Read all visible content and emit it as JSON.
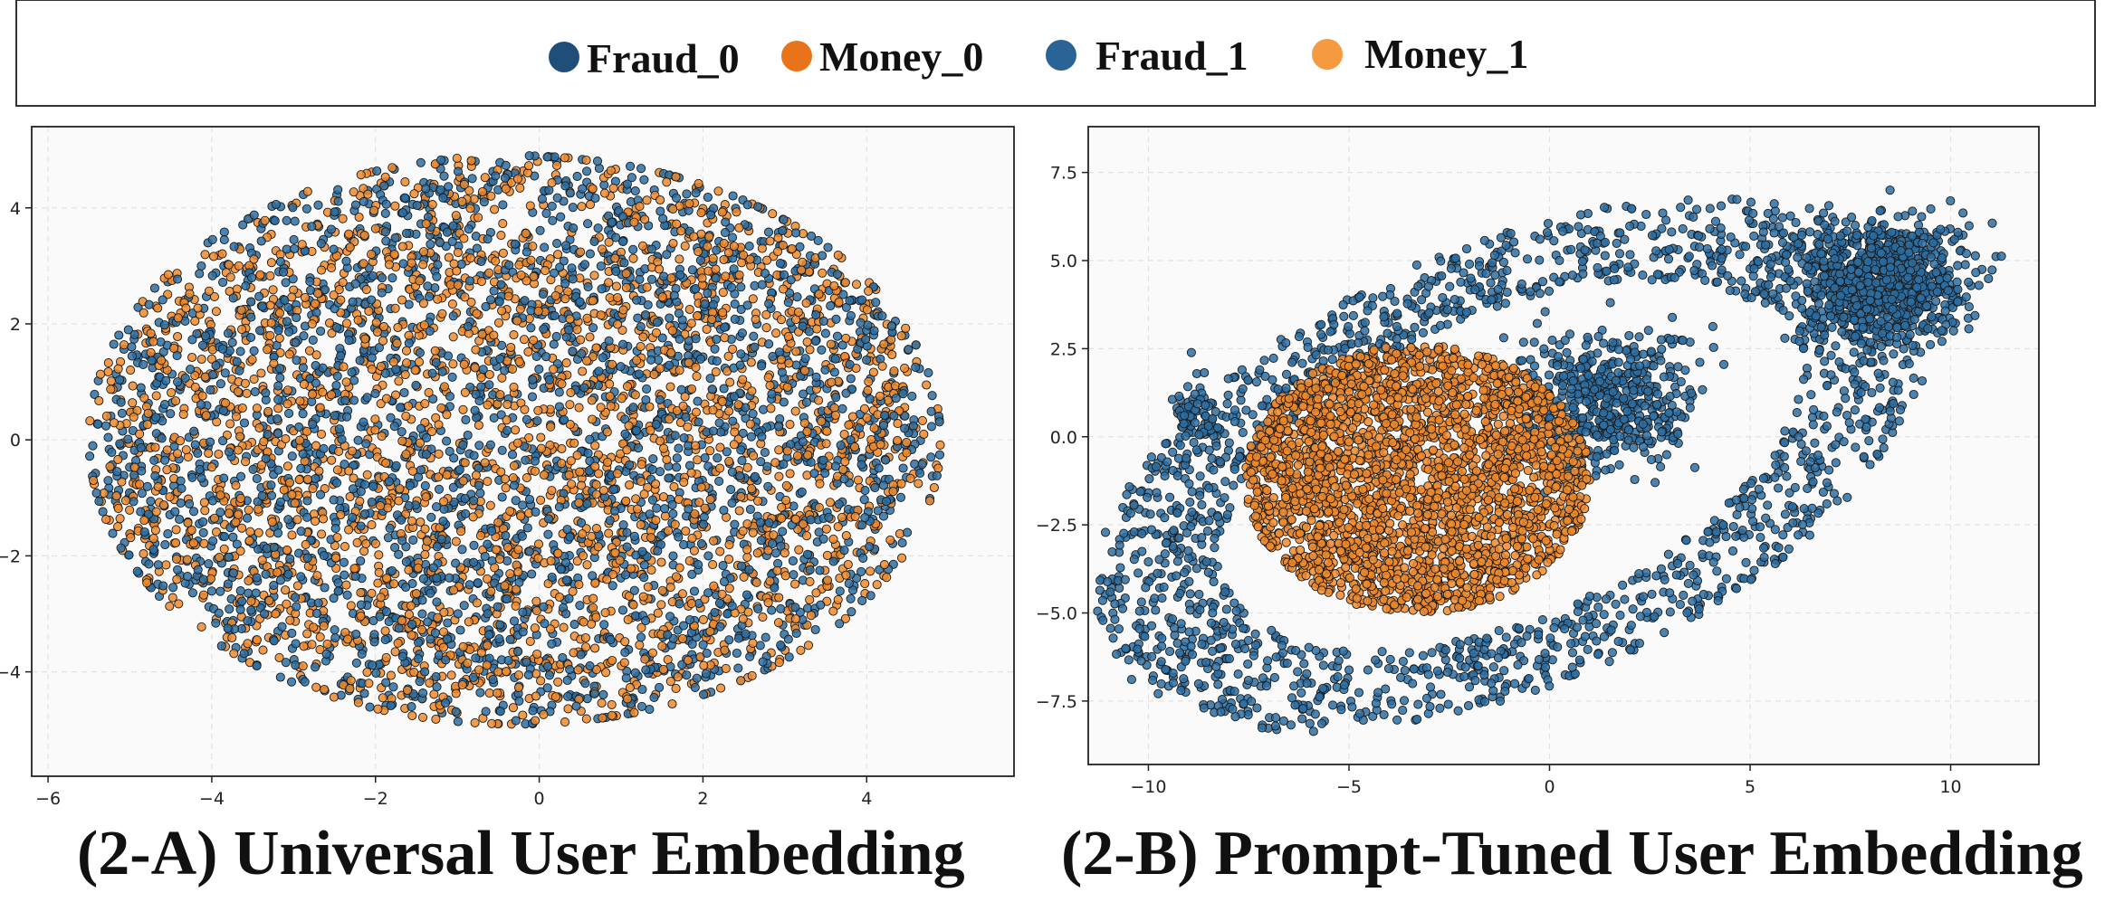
{
  "legend": {
    "items": [
      {
        "label": "Fraud_0",
        "color": "#1f4e79"
      },
      {
        "label": "Money_0",
        "color": "#e8731a"
      },
      {
        "label": "Fraud_1",
        "color": "#2a6496"
      },
      {
        "label": "Money_1",
        "color": "#f59a40"
      }
    ]
  },
  "captions": {
    "a": "(2-A)  Universal User Embedding",
    "b": "(2-B)  Prompt-Tuned User Embedding"
  },
  "chart_data": [
    {
      "type": "scatter",
      "title": "",
      "xlabel": "",
      "ylabel": "",
      "xlim": [
        -6.2,
        5.8
      ],
      "ylim": [
        -5.8,
        5.4
      ],
      "xticks": [
        -6,
        -4,
        -2,
        0,
        2,
        4
      ],
      "yticks": [
        4,
        2,
        0,
        -2,
        -4
      ],
      "grid": true,
      "background": "#fafafa",
      "series": [
        {
          "name": "Fraud",
          "color": "#2c6fa3",
          "distribution": "ellipse",
          "center": [
            -0.3,
            0.0
          ],
          "radius": [
            5.2,
            5.0
          ],
          "count": 2600
        },
        {
          "name": "Money",
          "color": "#f08a2a",
          "distribution": "ellipse",
          "center": [
            -0.3,
            0.0
          ],
          "radius": [
            5.2,
            5.0
          ],
          "count": 2600
        }
      ]
    },
    {
      "type": "scatter",
      "title": "",
      "xlabel": "",
      "ylabel": "",
      "xlim": [
        -11.5,
        12.2
      ],
      "ylim": [
        -9.3,
        8.8
      ],
      "xticks": [
        -10,
        -5,
        0,
        5,
        10
      ],
      "yticks": [
        7.5,
        5.0,
        2.5,
        0.0,
        -2.5,
        -5.0,
        -7.5
      ],
      "grid": true,
      "background": "#fafafa",
      "series": [
        {
          "name": "Fraud",
          "color": "#2c6fa3",
          "distribution": "ring-and-clusters",
          "clusters": [
            {
              "center": [
                8.3,
                4.5
              ],
              "radius": [
                2.0,
                1.7
              ],
              "count": 900
            },
            {
              "center": [
                1.5,
                1.0
              ],
              "radius": [
                2.2,
                2.0
              ],
              "count": 500
            },
            {
              "center": [
                -8.8,
                0.5
              ],
              "radius": [
                0.6,
                1.0
              ],
              "count": 80
            }
          ],
          "ring_count": 1700
        },
        {
          "name": "Money",
          "color": "#f08a2a",
          "distribution": "blob",
          "center": [
            -3.3,
            -1.2
          ],
          "radius": [
            4.3,
            3.8
          ],
          "count": 2600
        }
      ]
    }
  ]
}
